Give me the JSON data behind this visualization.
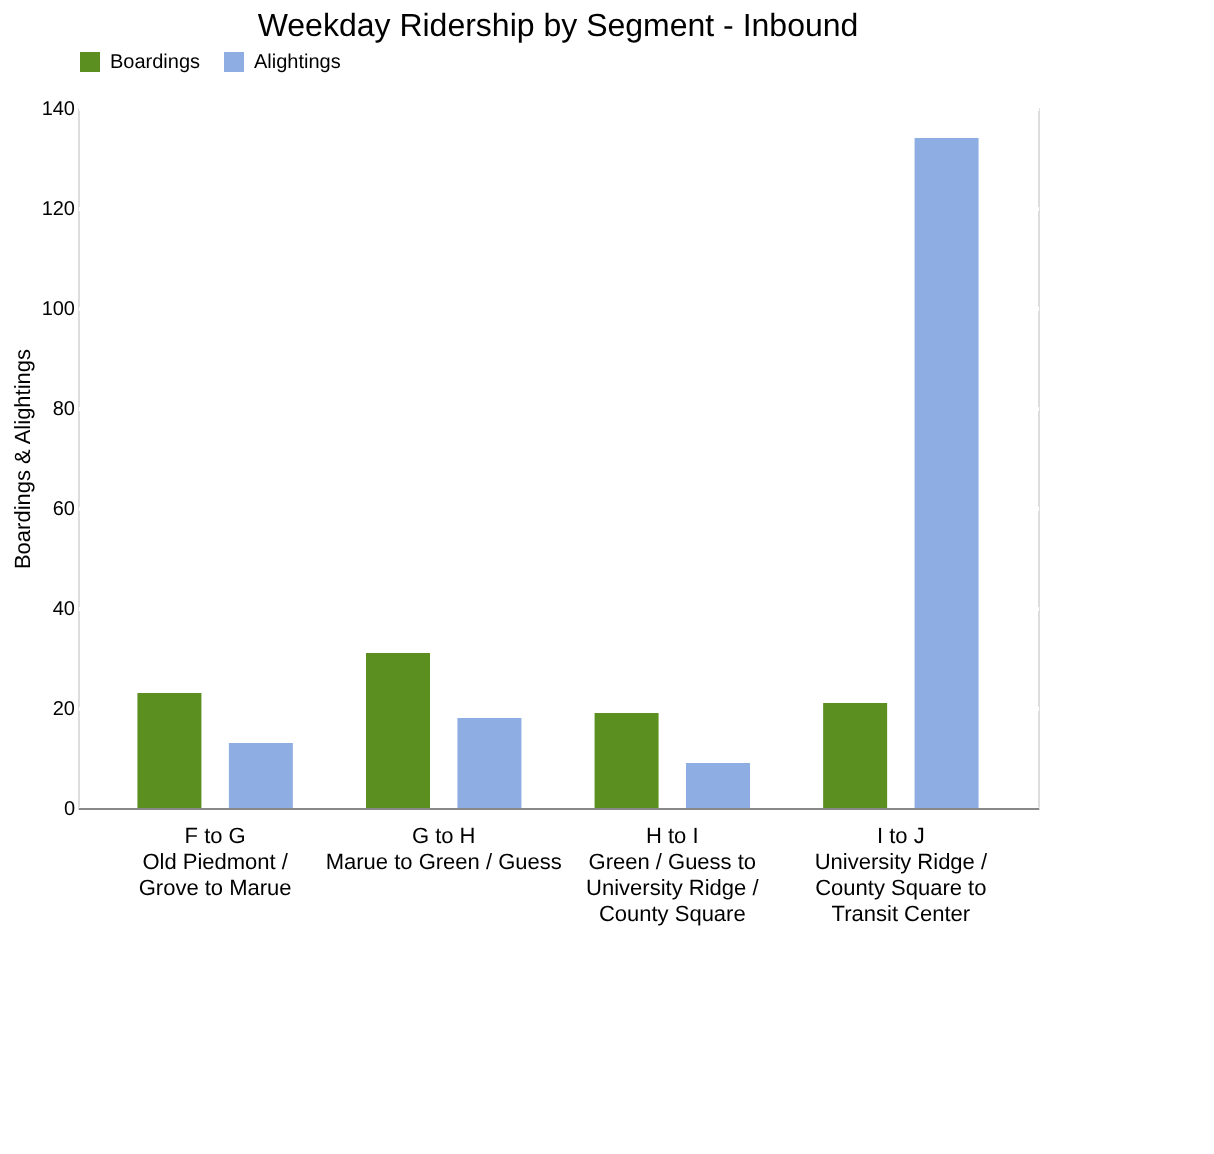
{
  "chart_data": {
    "type": "bar",
    "title": "Weekday Ridership by Segment - Inbound",
    "categories": [
      "F to G\nOld Piedmont /\nGrove to Marue",
      "G to H\nMarue to Green / Guess",
      "H to I\nGreen / Guess to\nUniversity Ridge /\nCounty Square",
      "I to J\nUniversity Ridge /\nCounty Square to\nTransit Center"
    ],
    "series": [
      {
        "name": "Boardings",
        "color": "#5b9020",
        "values": [
          23,
          31,
          19,
          21
        ]
      },
      {
        "name": "Alightings",
        "color": "#8eaee3",
        "values": [
          13,
          18,
          9,
          134
        ]
      }
    ],
    "ylabel": "Boardings & Alightings",
    "ylim": [
      0,
      140
    ],
    "yticks": [
      0,
      20,
      40,
      60,
      80,
      100,
      120,
      140
    ],
    "grid": "y",
    "legend": "top"
  }
}
